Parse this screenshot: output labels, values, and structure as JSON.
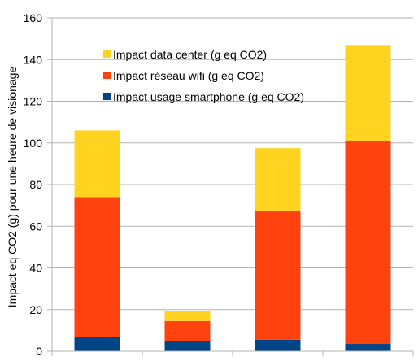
{
  "chart_data": {
    "type": "bar",
    "stacked": true,
    "title": "",
    "xlabel": "",
    "ylabel": "Impact eq CO2 (g) pour une heure de visionage",
    "ylim": [
      0,
      160
    ],
    "yticks": [
      0,
      20,
      40,
      60,
      80,
      100,
      120,
      140,
      160
    ],
    "grid": true,
    "legend_position": "top-center",
    "categories": [
      "",
      "",
      "",
      ""
    ],
    "series": [
      {
        "name": "Impact usage smartphone (g eq CO2)",
        "color": "#004586",
        "values": [
          7,
          5,
          5.5,
          3.5
        ]
      },
      {
        "name": "Impact réseau wifi (g eq CO2)",
        "color": "#ff420e",
        "values": [
          67,
          9.5,
          62,
          97.5
        ]
      },
      {
        "name": "Impact data center (g eq CO2)",
        "color": "#ffd320",
        "values": [
          32,
          5,
          30,
          46
        ]
      }
    ],
    "legend_order": [
      2,
      1,
      0
    ]
  }
}
